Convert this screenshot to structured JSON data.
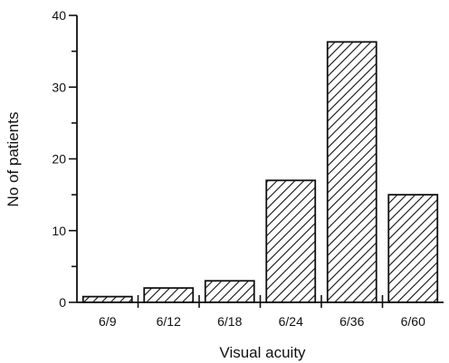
{
  "chart_data": {
    "type": "bar",
    "categories": [
      "6/9",
      "6/12",
      "6/18",
      "6/24",
      "6/36",
      "6/60"
    ],
    "values": [
      0.8,
      2,
      3,
      17,
      36.3,
      15
    ],
    "xlabel": "Visual acuity",
    "ylabel": "No of patients",
    "ylim": [
      0,
      40
    ],
    "yticks": [
      0,
      10,
      20,
      30,
      40
    ],
    "grid": false,
    "bar_fill": "hatched",
    "colors": {
      "bar_stroke": "#111111",
      "hatch": "#111111",
      "axis": "#111111"
    }
  }
}
